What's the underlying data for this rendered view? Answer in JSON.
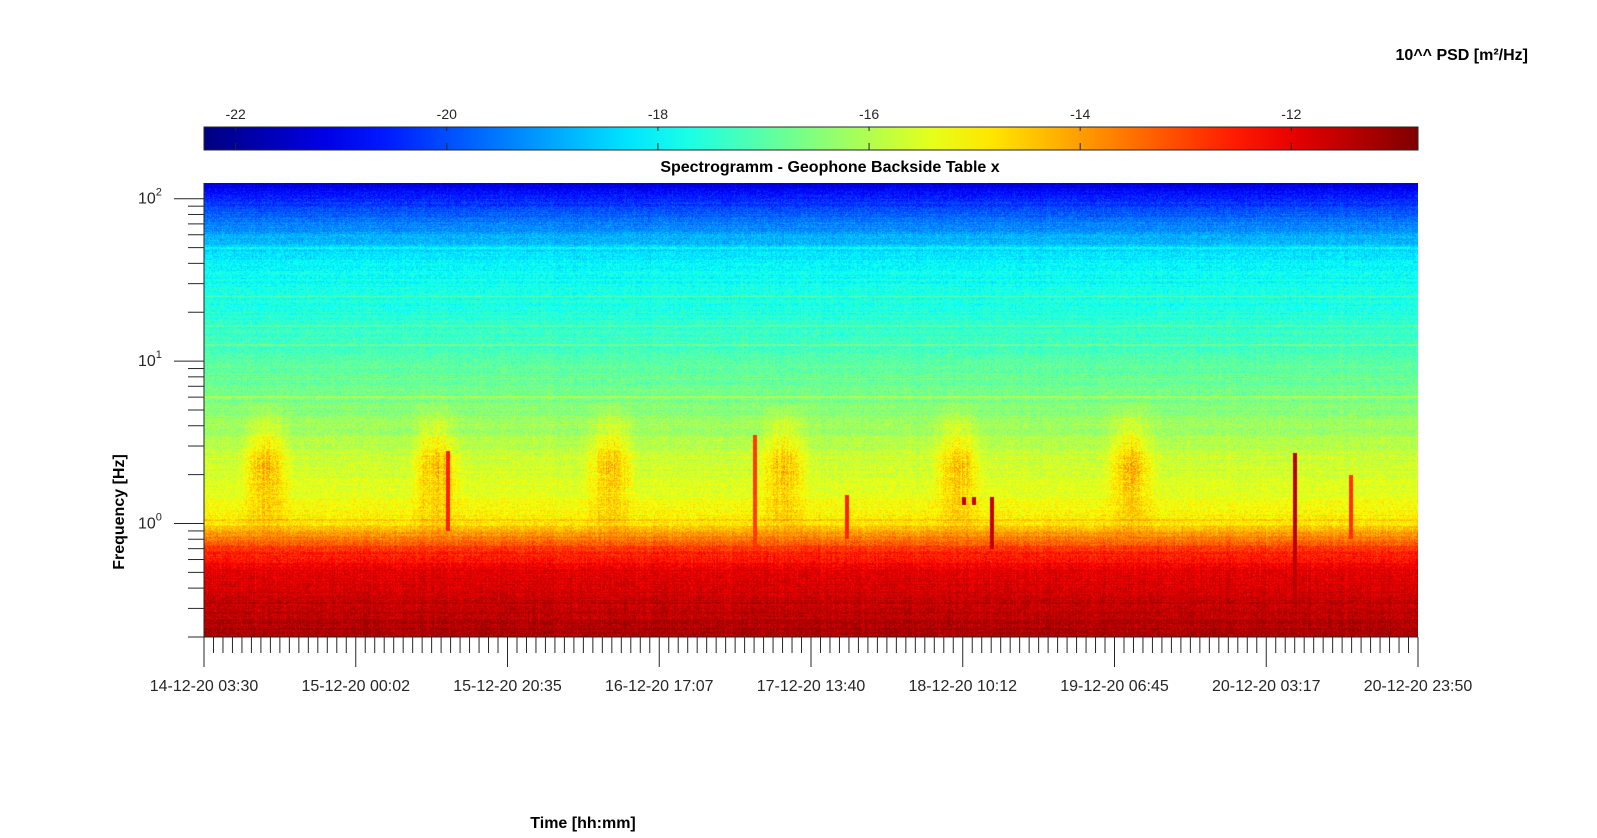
{
  "chart_data": {
    "type": "heatmap",
    "title": "Spectrogramm - Geophone Backside Table x",
    "xlabel": "Time [hh:mm]",
    "ylabel": "Frequency [Hz]",
    "colorbar_label": "10^^ PSD [m²/Hz]",
    "colormap": "jet",
    "colorbar_range": [
      -22.3,
      -10.8
    ],
    "colorbar_ticks": [
      -22,
      -20,
      -18,
      -16,
      -14,
      -12
    ],
    "colorbar_tick_labels": [
      "-22",
      "-20",
      "-18",
      "-16",
      "-14",
      "-12"
    ],
    "yscale": "log",
    "ylim": [
      0.2,
      125
    ],
    "yticks": [
      1,
      10,
      100
    ],
    "ytick_labels": [
      {
        "base": "10",
        "exp": "0"
      },
      {
        "base": "10",
        "exp": "1"
      },
      {
        "base": "10",
        "exp": "2"
      }
    ],
    "xlim": [
      "14-12-20 03:30",
      "20-12-20 23:50"
    ],
    "xtick_labels": [
      "14-12-20 03:30",
      "15-12-20 00:02",
      "15-12-20 20:35",
      "16-12-20 17:07",
      "17-12-20 13:40",
      "18-12-20 10:12",
      "19-12-20 06:45",
      "20-12-20 03:17",
      "20-12-20 23:50"
    ],
    "psd_profile": {
      "frequency_hz": [
        0.2,
        0.3,
        0.5,
        0.7,
        1.0,
        1.5,
        2.5,
        4.0,
        6.0,
        10,
        20,
        40,
        60,
        100,
        125
      ],
      "log_psd": [
        -11.3,
        -11.5,
        -11.9,
        -12.8,
        -14.8,
        -15.4,
        -15.7,
        -16.2,
        -16.6,
        -17.0,
        -17.6,
        -18.0,
        -19.0,
        -20.5,
        -21.3
      ]
    },
    "day_night_cycle": {
      "busy_periods": [
        [
          "14-12-20 08:00",
          "14-12-20 16:00"
        ],
        [
          "15-12-20 07:00",
          "15-12-20 15:00"
        ],
        [
          "16-12-20 06:30",
          "16-12-20 14:30"
        ],
        [
          "17-12-20 06:00",
          "17-12-20 14:00"
        ],
        [
          "18-12-20 05:30",
          "18-12-20 13:30"
        ],
        [
          "19-12-20 05:00",
          "19-12-20 13:00"
        ]
      ],
      "busy_increase_log_psd": 1.3,
      "frequency_band_hz": [
        1.0,
        5.0
      ]
    },
    "spectral_lines": [
      {
        "frequency_hz": 25,
        "log_psd_increase": 0.8
      },
      {
        "frequency_hz": 16.5,
        "log_psd_increase": 0.5
      },
      {
        "frequency_hz": 12.5,
        "log_psd_increase": 0.4
      },
      {
        "frequency_hz": 6.0,
        "log_psd_increase": 0.7
      },
      {
        "frequency_hz": 50,
        "log_psd_increase": 0.6
      },
      {
        "frequency_hz": 1.05,
        "log_psd_increase": 0.5
      }
    ],
    "events": [
      {
        "time": "15-12-20 12:30",
        "fmin_hz": 0.9,
        "fmax_hz": 2.8,
        "log_psd": -12.6
      },
      {
        "time": "17-12-20 06:00",
        "fmin_hz": 0.35,
        "fmax_hz": 3.5,
        "log_psd": -12.9
      },
      {
        "time": "17-12-20 18:30",
        "fmin_hz": 0.8,
        "fmax_hz": 1.5,
        "log_psd": -12.6
      },
      {
        "time": "18-12-20 10:20",
        "fmin_hz": 1.3,
        "fmax_hz": 1.45,
        "log_psd": -11.6
      },
      {
        "time": "18-12-20 11:40",
        "fmin_hz": 1.3,
        "fmax_hz": 1.45,
        "log_psd": -11.6
      },
      {
        "time": "18-12-20 14:10",
        "fmin_hz": 0.7,
        "fmax_hz": 1.45,
        "log_psd": -11.6
      },
      {
        "time": "20-12-20 07:10",
        "fmin_hz": 0.3,
        "fmax_hz": 2.7,
        "log_psd": -11.5
      },
      {
        "time": "20-12-20 14:40",
        "fmin_hz": 0.8,
        "fmax_hz": 2.0,
        "log_psd": -12.8
      }
    ]
  }
}
